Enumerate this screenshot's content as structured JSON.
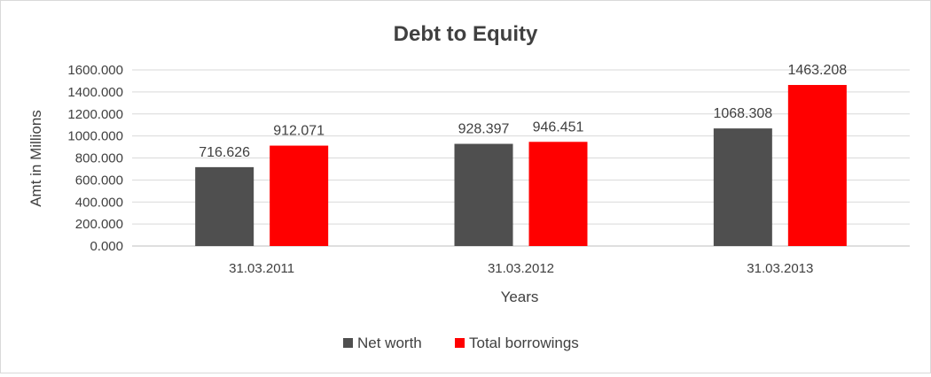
{
  "chart_data": {
    "type": "bar",
    "title": "Debt to Equity",
    "xlabel": "Years",
    "ylabel": "Amt in Millions",
    "categories": [
      "31.03.2011",
      "31.03.2012",
      "31.03.2013"
    ],
    "series": [
      {
        "name": "Net worth",
        "values": [
          716.626,
          928.397,
          1068.308
        ],
        "color": "#4f4f4f"
      },
      {
        "name": "Total borrowings",
        "values": [
          912.071,
          946.451,
          1463.208
        ],
        "color": "#ff0000"
      }
    ],
    "ylim": [
      0,
      1600
    ],
    "ytick_step": 200,
    "ytick_labels": [
      "0.000",
      "200.000",
      "400.000",
      "600.000",
      "800.000",
      "1000.000",
      "1200.000",
      "1400.000",
      "1600.000"
    ],
    "data_labels": [
      [
        "716.626",
        "928.397",
        "1068.308"
      ],
      [
        "912.071",
        "946.451",
        "1463.208"
      ]
    ],
    "grid": true,
    "legend_position": "bottom"
  }
}
